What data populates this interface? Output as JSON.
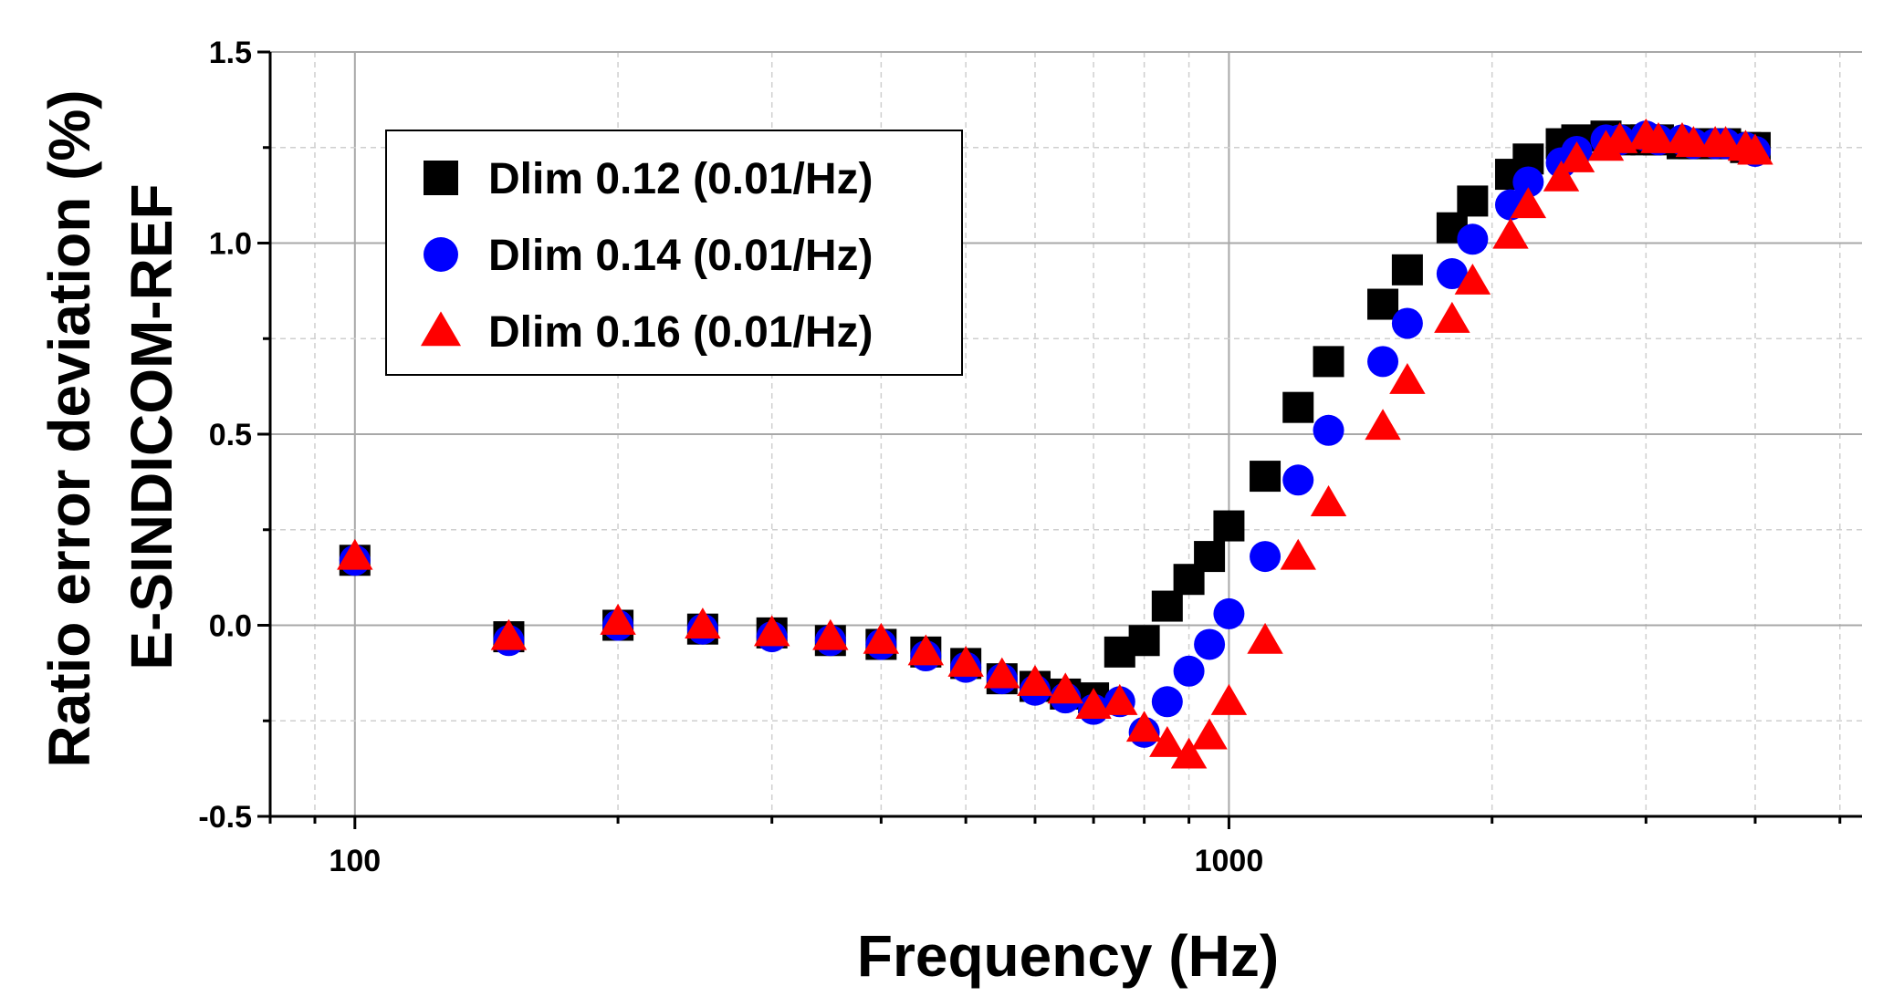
{
  "chart_data": {
    "type": "scatter",
    "xscale": "log",
    "xlabel": "Frequency (Hz)",
    "ylabel_line1": "Ratio error deviation (%)",
    "ylabel_line2": "E-SINDICOM-REF",
    "xlim": [
      80,
      5300
    ],
    "ylim": [
      -0.5,
      1.5
    ],
    "x_ticks": [
      {
        "value": 100,
        "label": "100"
      },
      {
        "value": 1000,
        "label": "1000"
      }
    ],
    "y_ticks": [
      {
        "value": -0.5,
        "label": "-0.5"
      },
      {
        "value": 0.0,
        "label": "0.0"
      },
      {
        "value": 0.5,
        "label": "0.5"
      },
      {
        "value": 1.0,
        "label": "1.0"
      },
      {
        "value": 1.5,
        "label": "1.5"
      }
    ],
    "grid": true,
    "legend_position": "top-left",
    "series": [
      {
        "name": "Dlim 0.12 (0.01/Hz)",
        "marker": "square",
        "color": "#000000",
        "x": [
          100,
          150,
          200,
          250,
          300,
          350,
          400,
          450,
          500,
          550,
          600,
          650,
          700,
          750,
          800,
          850,
          900,
          950,
          1000,
          1100,
          1200,
          1300,
          1500,
          1600,
          1800,
          1900,
          2100,
          2200,
          2400,
          2500,
          2700,
          2800,
          3000,
          3100,
          3300,
          3400,
          3600,
          3700,
          3900,
          4000
        ],
        "y": [
          0.17,
          -0.03,
          0.0,
          -0.01,
          -0.02,
          -0.04,
          -0.05,
          -0.07,
          -0.1,
          -0.14,
          -0.16,
          -0.18,
          -0.19,
          -0.07,
          -0.04,
          0.05,
          0.12,
          0.18,
          0.26,
          0.39,
          0.57,
          0.69,
          0.84,
          0.93,
          1.04,
          1.11,
          1.18,
          1.22,
          1.26,
          1.27,
          1.28,
          1.27,
          1.27,
          1.27,
          1.26,
          1.26,
          1.26,
          1.26,
          1.25,
          1.25
        ]
      },
      {
        "name": "Dlim 0.14 (0.01/Hz)",
        "marker": "circle",
        "color": "#0000ff",
        "x": [
          100,
          150,
          200,
          250,
          300,
          350,
          400,
          450,
          500,
          550,
          600,
          650,
          700,
          750,
          800,
          850,
          900,
          950,
          1000,
          1100,
          1200,
          1300,
          1500,
          1600,
          1800,
          1900,
          2100,
          2200,
          2400,
          2500,
          2700,
          2800,
          3000,
          3100,
          3300,
          3400,
          3600,
          3700,
          3900,
          4000
        ],
        "y": [
          0.17,
          -0.04,
          0.0,
          -0.01,
          -0.03,
          -0.04,
          -0.05,
          -0.08,
          -0.11,
          -0.14,
          -0.17,
          -0.19,
          -0.22,
          -0.2,
          -0.28,
          -0.2,
          -0.12,
          -0.05,
          0.03,
          0.18,
          0.38,
          0.51,
          0.69,
          0.79,
          0.92,
          1.01,
          1.1,
          1.16,
          1.21,
          1.24,
          1.27,
          1.27,
          1.28,
          1.27,
          1.27,
          1.26,
          1.26,
          1.26,
          1.25,
          1.24
        ]
      },
      {
        "name": "Dlim 0.16 (0.01/Hz)",
        "marker": "triangle",
        "color": "#ff0000",
        "x": [
          100,
          150,
          200,
          250,
          300,
          350,
          400,
          450,
          500,
          550,
          600,
          650,
          700,
          750,
          800,
          850,
          900,
          950,
          1000,
          1100,
          1200,
          1300,
          1500,
          1600,
          1800,
          1900,
          2100,
          2200,
          2400,
          2500,
          2700,
          2800,
          3000,
          3100,
          3300,
          3400,
          3600,
          3700,
          3900,
          4000
        ],
        "y": [
          0.18,
          -0.03,
          0.01,
          0.0,
          -0.02,
          -0.03,
          -0.04,
          -0.07,
          -0.1,
          -0.13,
          -0.15,
          -0.17,
          -0.21,
          -0.2,
          -0.27,
          -0.31,
          -0.34,
          -0.29,
          -0.2,
          -0.04,
          0.18,
          0.32,
          0.52,
          0.64,
          0.8,
          0.9,
          1.02,
          1.1,
          1.17,
          1.22,
          1.25,
          1.27,
          1.28,
          1.27,
          1.27,
          1.26,
          1.26,
          1.26,
          1.25,
          1.24
        ]
      }
    ]
  }
}
